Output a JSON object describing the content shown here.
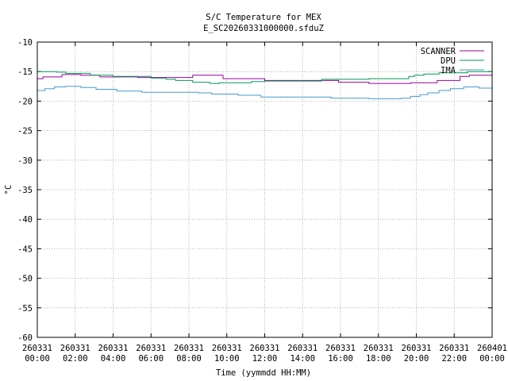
{
  "chart_data": {
    "type": "line",
    "title": "S/C Temperature for MEX",
    "subtitle": "E_SC20260331000000.sfduZ",
    "xlabel": "Time (yymmdd HH:MM)",
    "ylabel": "°C",
    "ylim": [
      -60,
      -10
    ],
    "xlim_hours": [
      0,
      24
    ],
    "grid": true,
    "legend_position": "top-right",
    "y_ticks": [
      "-10",
      "-15",
      "-20",
      "-25",
      "-30",
      "-35",
      "-40",
      "-45",
      "-50",
      "-55",
      "-60"
    ],
    "x_ticks": [
      {
        "date": "260331",
        "time": "00:00"
      },
      {
        "date": "260331",
        "time": "02:00"
      },
      {
        "date": "260331",
        "time": "04:00"
      },
      {
        "date": "260331",
        "time": "06:00"
      },
      {
        "date": "260331",
        "time": "08:00"
      },
      {
        "date": "260331",
        "time": "10:00"
      },
      {
        "date": "260331",
        "time": "12:00"
      },
      {
        "date": "260331",
        "time": "14:00"
      },
      {
        "date": "260331",
        "time": "16:00"
      },
      {
        "date": "260331",
        "time": "18:00"
      },
      {
        "date": "260331",
        "time": "20:00"
      },
      {
        "date": "260331",
        "time": "22:00"
      },
      {
        "date": "260401",
        "time": "00:00"
      }
    ],
    "series": [
      {
        "name": "SCANNER",
        "color": "#990099",
        "step": true,
        "points": [
          [
            0,
            -16.2
          ],
          [
            0.3,
            -15.9
          ],
          [
            1.3,
            -15.5
          ],
          [
            2.3,
            -15.6
          ],
          [
            3.3,
            -15.9
          ],
          [
            5.3,
            -16.0
          ],
          [
            8.2,
            -15.6
          ],
          [
            9.8,
            -16.2
          ],
          [
            12,
            -16.5
          ],
          [
            13.6,
            -16.5
          ],
          [
            15.9,
            -16.8
          ],
          [
            17.5,
            -17.0
          ],
          [
            19.7,
            -16.9
          ],
          [
            21.1,
            -16.5
          ],
          [
            22.3,
            -15.8
          ],
          [
            22.8,
            -15.6
          ],
          [
            24,
            -15.4
          ]
        ]
      },
      {
        "name": "DPU",
        "color": "#009955",
        "step": true,
        "points": [
          [
            0,
            -15.0
          ],
          [
            1.0,
            -15.1
          ],
          [
            1.5,
            -15.3
          ],
          [
            2.8,
            -15.6
          ],
          [
            4.0,
            -15.8
          ],
          [
            6.0,
            -16.1
          ],
          [
            6.8,
            -16.3
          ],
          [
            7.3,
            -16.5
          ],
          [
            8.2,
            -16.8
          ],
          [
            9.1,
            -17.0
          ],
          [
            9.6,
            -16.9
          ],
          [
            11.3,
            -16.7
          ],
          [
            12,
            -16.6
          ],
          [
            15,
            -16.3
          ],
          [
            17.5,
            -16.2
          ],
          [
            19.6,
            -15.8
          ],
          [
            19.9,
            -15.6
          ],
          [
            20.4,
            -15.4
          ],
          [
            21.2,
            -15.2
          ],
          [
            22.7,
            -15.0
          ],
          [
            24,
            -15.0
          ]
        ]
      },
      {
        "name": "IMA",
        "color": "#4499cc",
        "step": true,
        "points": [
          [
            0,
            -18.2
          ],
          [
            0.4,
            -17.9
          ],
          [
            0.9,
            -17.6
          ],
          [
            1.5,
            -17.5
          ],
          [
            2.3,
            -17.7
          ],
          [
            3.1,
            -18.0
          ],
          [
            4.2,
            -18.3
          ],
          [
            5.5,
            -18.5
          ],
          [
            8.5,
            -18.6
          ],
          [
            9.2,
            -18.8
          ],
          [
            10.6,
            -19.0
          ],
          [
            11.8,
            -19.3
          ],
          [
            15.5,
            -19.5
          ],
          [
            17.5,
            -19.6
          ],
          [
            19.2,
            -19.5
          ],
          [
            19.7,
            -19.2
          ],
          [
            20.2,
            -18.9
          ],
          [
            20.6,
            -18.6
          ],
          [
            21.2,
            -18.2
          ],
          [
            21.8,
            -17.9
          ],
          [
            22.5,
            -17.6
          ],
          [
            23.3,
            -17.8
          ],
          [
            24,
            -17.9
          ]
        ]
      }
    ]
  }
}
